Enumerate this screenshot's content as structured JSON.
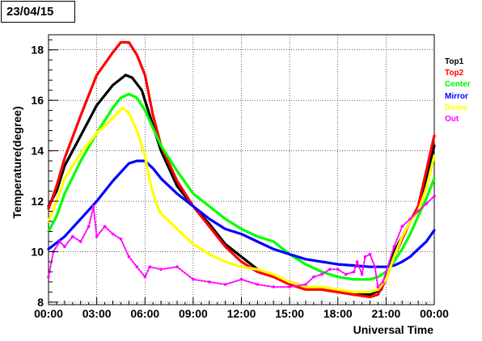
{
  "date_label": "23/04/15",
  "chart_data": {
    "type": "line",
    "title": "",
    "xlabel": "Universal Time",
    "ylabel": "Temperature(degree)",
    "xlim": [
      0,
      24
    ],
    "ylim": [
      7.9,
      18.6
    ],
    "x_ticks": [
      {
        "v": 0,
        "label": "00:00"
      },
      {
        "v": 3,
        "label": "03:00"
      },
      {
        "v": 6,
        "label": "06:00"
      },
      {
        "v": 9,
        "label": "09:00"
      },
      {
        "v": 12,
        "label": "12:00"
      },
      {
        "v": 15,
        "label": "15:00"
      },
      {
        "v": 18,
        "label": "18:00"
      },
      {
        "v": 21,
        "label": "21:00"
      },
      {
        "v": 24,
        "label": "00:00"
      }
    ],
    "y_ticks": [
      8,
      10,
      12,
      14,
      16,
      18
    ],
    "grid": true,
    "legend_position": "right",
    "series": [
      {
        "name": "Top1",
        "color": "#000000",
        "points": [
          [
            0,
            11.8
          ],
          [
            0.5,
            12.4
          ],
          [
            1,
            13.4
          ],
          [
            2,
            14.6
          ],
          [
            3,
            15.8
          ],
          [
            4,
            16.6
          ],
          [
            4.8,
            17.0
          ],
          [
            5.2,
            16.9
          ],
          [
            5.8,
            16.4
          ],
          [
            6.3,
            15.4
          ],
          [
            7,
            14.0
          ],
          [
            8,
            12.6
          ],
          [
            9,
            11.8
          ],
          [
            10,
            11.1
          ],
          [
            11,
            10.3
          ],
          [
            12,
            9.8
          ],
          [
            13,
            9.3
          ],
          [
            14,
            9.0
          ],
          [
            15,
            8.8
          ],
          [
            16,
            8.6
          ],
          [
            17,
            8.5
          ],
          [
            18,
            8.4
          ],
          [
            19,
            8.3
          ],
          [
            20,
            8.3
          ],
          [
            20.7,
            8.5
          ],
          [
            21,
            9.0
          ],
          [
            21.5,
            10.0
          ],
          [
            22,
            10.6
          ],
          [
            22.5,
            11.2
          ],
          [
            23,
            11.8
          ],
          [
            23.5,
            12.9
          ],
          [
            24,
            14.2
          ]
        ]
      },
      {
        "name": "Top2",
        "color": "#ff0000",
        "points": [
          [
            0,
            11.7
          ],
          [
            0.5,
            12.6
          ],
          [
            1,
            13.7
          ],
          [
            2,
            15.4
          ],
          [
            3,
            17.0
          ],
          [
            4,
            17.9
          ],
          [
            4.5,
            18.3
          ],
          [
            5,
            18.3
          ],
          [
            5.5,
            17.8
          ],
          [
            6,
            17.0
          ],
          [
            6.5,
            15.4
          ],
          [
            7,
            14.2
          ],
          [
            8,
            12.8
          ],
          [
            9,
            11.8
          ],
          [
            10,
            11.0
          ],
          [
            11,
            10.2
          ],
          [
            12,
            9.6
          ],
          [
            13,
            9.2
          ],
          [
            14,
            9.0
          ],
          [
            15,
            8.7
          ],
          [
            16,
            8.5
          ],
          [
            17,
            8.5
          ],
          [
            18,
            8.4
          ],
          [
            19,
            8.3
          ],
          [
            20,
            8.2
          ],
          [
            20.5,
            8.3
          ],
          [
            21,
            8.9
          ],
          [
            21.5,
            9.8
          ],
          [
            22,
            10.5
          ],
          [
            22.5,
            11.2
          ],
          [
            23,
            11.8
          ],
          [
            23.5,
            13.2
          ],
          [
            24,
            14.6
          ]
        ]
      },
      {
        "name": "Center",
        "color": "#00ff00",
        "points": [
          [
            0,
            10.8
          ],
          [
            0.5,
            11.4
          ],
          [
            1,
            12.3
          ],
          [
            2,
            13.6
          ],
          [
            3,
            14.7
          ],
          [
            4,
            15.7
          ],
          [
            4.5,
            16.1
          ],
          [
            5,
            16.25
          ],
          [
            5.5,
            16.1
          ],
          [
            6,
            15.6
          ],
          [
            6.5,
            14.9
          ],
          [
            7,
            14.2
          ],
          [
            8,
            13.2
          ],
          [
            9,
            12.3
          ],
          [
            10,
            11.8
          ],
          [
            11,
            11.3
          ],
          [
            12,
            10.9
          ],
          [
            13,
            10.6
          ],
          [
            14,
            10.4
          ],
          [
            15,
            9.9
          ],
          [
            16,
            9.5
          ],
          [
            17,
            9.2
          ],
          [
            18,
            9.0
          ],
          [
            19,
            8.9
          ],
          [
            20,
            8.9
          ],
          [
            20.5,
            9.0
          ],
          [
            21,
            9.2
          ],
          [
            21.5,
            9.6
          ],
          [
            22,
            10.1
          ],
          [
            22.5,
            10.7
          ],
          [
            23,
            11.4
          ],
          [
            23.5,
            12.1
          ],
          [
            24,
            12.9
          ]
        ]
      },
      {
        "name": "Mirror",
        "color": "#0000ff",
        "points": [
          [
            0,
            10.1
          ],
          [
            1,
            10.6
          ],
          [
            2,
            11.3
          ],
          [
            3,
            12.0
          ],
          [
            4,
            12.8
          ],
          [
            5,
            13.5
          ],
          [
            5.5,
            13.6
          ],
          [
            6,
            13.6
          ],
          [
            6.5,
            13.3
          ],
          [
            7,
            12.9
          ],
          [
            8,
            12.3
          ],
          [
            9,
            11.8
          ],
          [
            10,
            11.3
          ],
          [
            11,
            10.9
          ],
          [
            12,
            10.7
          ],
          [
            13,
            10.4
          ],
          [
            14,
            10.1
          ],
          [
            15,
            9.9
          ],
          [
            16,
            9.7
          ],
          [
            17,
            9.6
          ],
          [
            18,
            9.5
          ],
          [
            19,
            9.45
          ],
          [
            20,
            9.4
          ],
          [
            21,
            9.4
          ],
          [
            21.5,
            9.45
          ],
          [
            22,
            9.6
          ],
          [
            22.5,
            9.8
          ],
          [
            23,
            10.1
          ],
          [
            23.5,
            10.4
          ],
          [
            24,
            10.85
          ]
        ]
      },
      {
        "name": "Dome",
        "color": "#ffff00",
        "points": [
          [
            0,
            11.2
          ],
          [
            0.5,
            12.0
          ],
          [
            1,
            12.9
          ],
          [
            2,
            13.9
          ],
          [
            3,
            14.7
          ],
          [
            4,
            15.3
          ],
          [
            4.6,
            15.7
          ],
          [
            5,
            15.5
          ],
          [
            5.5,
            14.8
          ],
          [
            6,
            13.8
          ],
          [
            6.3,
            12.8
          ],
          [
            6.7,
            11.9
          ],
          [
            7,
            11.5
          ],
          [
            8,
            10.9
          ],
          [
            9,
            10.3
          ],
          [
            10,
            9.9
          ],
          [
            11,
            9.6
          ],
          [
            12,
            9.4
          ],
          [
            13,
            9.3
          ],
          [
            14,
            9.1
          ],
          [
            15,
            8.8
          ],
          [
            16,
            8.6
          ],
          [
            17,
            8.6
          ],
          [
            18,
            8.5
          ],
          [
            19,
            8.4
          ],
          [
            20,
            8.4
          ],
          [
            20.5,
            8.5
          ],
          [
            21,
            8.9
          ],
          [
            21.5,
            9.8
          ],
          [
            22,
            10.6
          ],
          [
            22.5,
            11.2
          ],
          [
            23,
            11.6
          ],
          [
            23.5,
            12.5
          ],
          [
            24,
            13.8
          ]
        ]
      },
      {
        "name": "Out",
        "color": "#ff00ff",
        "points": [
          [
            0,
            9.0
          ],
          [
            0.3,
            10.0
          ],
          [
            0.7,
            10.4
          ],
          [
            1,
            10.2
          ],
          [
            1.5,
            10.6
          ],
          [
            2,
            10.4
          ],
          [
            2.5,
            11.0
          ],
          [
            2.8,
            11.8
          ],
          [
            3,
            10.6
          ],
          [
            3.5,
            11.0
          ],
          [
            4,
            10.7
          ],
          [
            4.5,
            10.5
          ],
          [
            5,
            9.8
          ],
          [
            5.5,
            9.4
          ],
          [
            6,
            9.0
          ],
          [
            6.3,
            9.4
          ],
          [
            7,
            9.3
          ],
          [
            8,
            9.4
          ],
          [
            9,
            8.9
          ],
          [
            10,
            8.8
          ],
          [
            11,
            8.7
          ],
          [
            12,
            8.9
          ],
          [
            13,
            8.7
          ],
          [
            14,
            8.6
          ],
          [
            15,
            8.6
          ],
          [
            16,
            8.7
          ],
          [
            16.5,
            9.0
          ],
          [
            17,
            9.1
          ],
          [
            17.5,
            9.3
          ],
          [
            18,
            9.3
          ],
          [
            18.5,
            9.1
          ],
          [
            19,
            9.2
          ],
          [
            19.2,
            9.6
          ],
          [
            19.5,
            9.1
          ],
          [
            19.7,
            9.8
          ],
          [
            20,
            9.9
          ],
          [
            20.3,
            9.4
          ],
          [
            20.5,
            8.6
          ],
          [
            20.8,
            8.8
          ],
          [
            21,
            9.2
          ],
          [
            21.5,
            10.2
          ],
          [
            22,
            11.0
          ],
          [
            22.5,
            11.3
          ],
          [
            23,
            11.6
          ],
          [
            23.5,
            11.9
          ],
          [
            24,
            12.2
          ]
        ]
      }
    ]
  }
}
